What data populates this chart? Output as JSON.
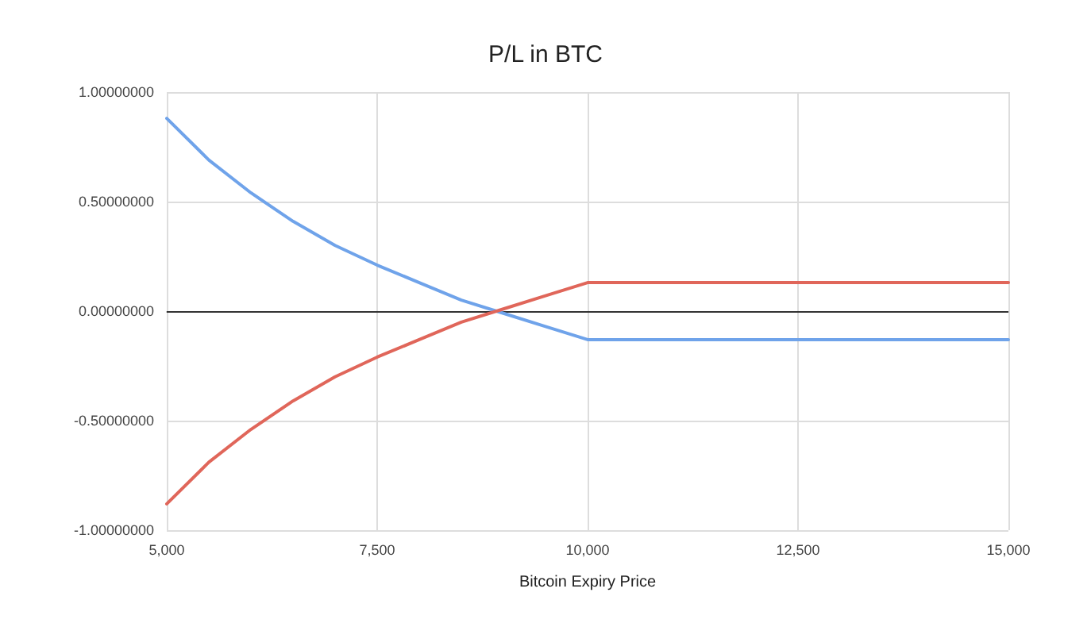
{
  "chart_data": {
    "type": "line",
    "title": "P/L in BTC",
    "xlabel": "Bitcoin Expiry Price",
    "x": [
      5000,
      5500,
      6000,
      6500,
      7000,
      7500,
      8000,
      8500,
      9000,
      9500,
      10000,
      15000
    ],
    "series": [
      {
        "color": "#6fa3ea",
        "values": [
          0.88,
          0.69,
          0.54,
          0.41,
          0.3,
          0.21,
          0.13,
          0.05,
          -0.01,
          -0.07,
          -0.13,
          -0.13
        ]
      },
      {
        "color": "#e0665a",
        "values": [
          -0.88,
          -0.69,
          -0.54,
          -0.41,
          -0.3,
          -0.21,
          -0.13,
          -0.05,
          0.01,
          0.07,
          0.13,
          0.13
        ]
      }
    ],
    "xlim": [
      5000,
      15000
    ],
    "xticks": [
      {
        "value": 5000,
        "label": "5,000"
      },
      {
        "value": 7500,
        "label": "7,500"
      },
      {
        "value": 10000,
        "label": "10,000"
      },
      {
        "value": 12500,
        "label": "12,500"
      },
      {
        "value": 15000,
        "label": "15,000"
      }
    ],
    "ylim": [
      -1,
      1
    ],
    "yticks": [
      {
        "value": -1,
        "label": "-1.00000000"
      },
      {
        "value": -0.5,
        "label": "-0.50000000"
      },
      {
        "value": 0,
        "label": "0.00000000"
      },
      {
        "value": 0.5,
        "label": "0.50000000"
      },
      {
        "value": 1,
        "label": "1.00000000"
      }
    ],
    "ref_lines": [
      {
        "axis": "y",
        "value": 0,
        "color": "#333333"
      }
    ],
    "grid": true,
    "marker": "none",
    "line_style": "solid"
  }
}
